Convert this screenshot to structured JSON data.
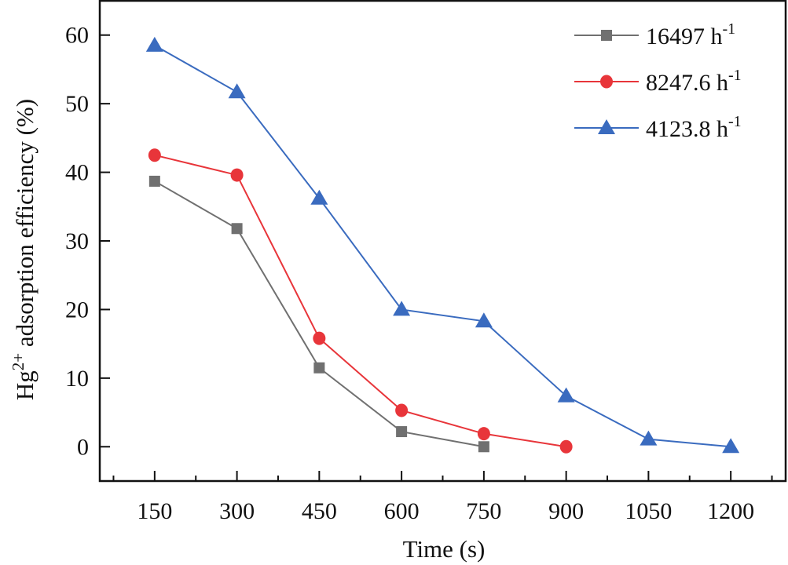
{
  "chart_data": {
    "type": "line",
    "title": "",
    "xlabel": "Time (s)",
    "ylabel": "Hg2+ adsorption efficiency (%)",
    "ylabel_parts": {
      "base": "Hg",
      "sup": "2+",
      "rest": " adsorption efficiency (%)"
    },
    "xlim": [
      50,
      1300
    ],
    "ylim": [
      -5,
      65
    ],
    "xticks": [
      150,
      300,
      450,
      600,
      750,
      900,
      1050,
      1200
    ],
    "xminor": [
      75,
      225,
      375,
      525,
      675,
      825,
      975,
      1125,
      1275
    ],
    "yticks": [
      0,
      10,
      20,
      30,
      40,
      50,
      60
    ],
    "grid": false,
    "legend_position": "top-right",
    "series": [
      {
        "name": "16497 h-1",
        "label_base": "16497 h",
        "label_sup": "-1",
        "color": "#707070",
        "marker": "square",
        "x": [
          150,
          300,
          450,
          600,
          750
        ],
        "values": [
          38.7,
          31.8,
          11.5,
          2.2,
          0
        ]
      },
      {
        "name": "8247.6 h-1",
        "label_base": "8247.6 h",
        "label_sup": "-1",
        "color": "#e8353a",
        "marker": "circle",
        "x": [
          150,
          300,
          450,
          600,
          750,
          900
        ],
        "values": [
          42.5,
          39.6,
          15.8,
          5.3,
          1.9,
          0
        ]
      },
      {
        "name": "4123.8 h-1",
        "label_base": "4123.8 h",
        "label_sup": "-1",
        "color": "#3a6bbf",
        "marker": "triangle",
        "x": [
          150,
          300,
          450,
          600,
          750,
          900,
          1050,
          1200
        ],
        "values": [
          58.5,
          51.7,
          36.2,
          20.0,
          18.3,
          7.4,
          1.1,
          0
        ]
      }
    ]
  }
}
